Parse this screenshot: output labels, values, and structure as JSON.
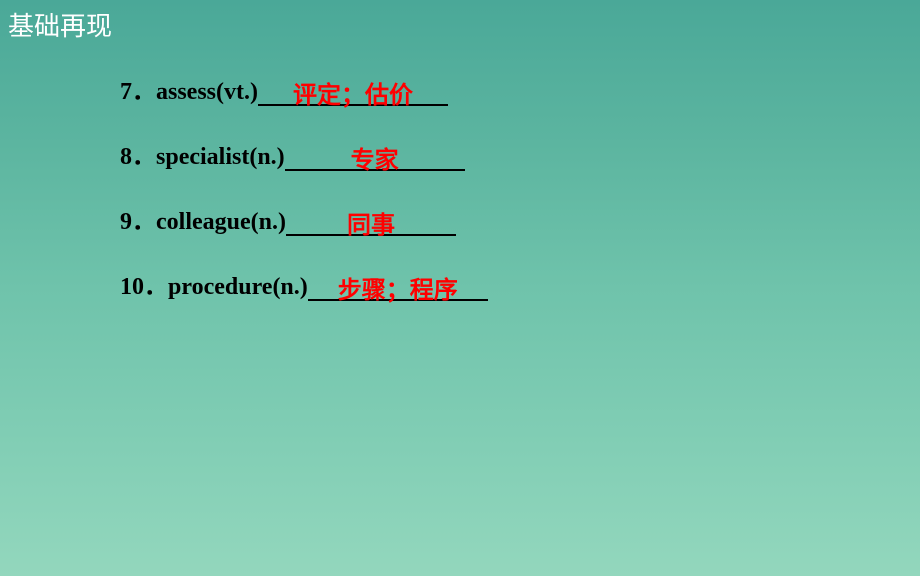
{
  "header": "基础再现",
  "items": [
    {
      "num": "7．",
      "word": "assess(vt.)",
      "answer": "评定；估价",
      "blank_width": 190
    },
    {
      "num": "8．",
      "word": "specialist(n.)",
      "answer": "专家",
      "blank_width": 180
    },
    {
      "num": "9．",
      "word": "colleague(n.)",
      "answer": "同事",
      "blank_width": 170
    },
    {
      "num": "10．",
      "word": "procedure(n.)",
      "answer": "步骤；程序",
      "blank_width": 180
    }
  ],
  "colors": {
    "header_text": "#ffffff",
    "word_text": "#000000",
    "answer_text": "#ff0000",
    "underline": "#000000",
    "bg_top": "#4aa898",
    "bg_bottom": "#93d7bd"
  },
  "fontsize": {
    "header": 26,
    "body": 24
  }
}
